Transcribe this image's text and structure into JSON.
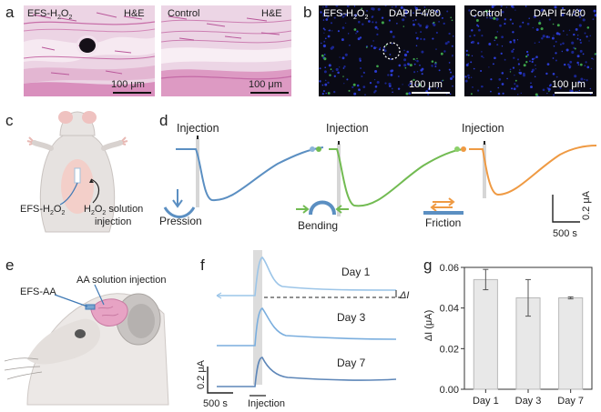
{
  "panels": {
    "a": {
      "label": "a",
      "left_title": "EFS-H",
      "left_sub": "2",
      "left_title_tail": "O",
      "left_sub2": "2",
      "left_stain": "H&E",
      "right_title": "Control",
      "right_stain": "H&E",
      "scale_left": "100 μm",
      "scale_right": "100 μm"
    },
    "b": {
      "label": "b",
      "left_title": "EFS-H",
      "left_sub": "2",
      "left_title_tail": "O",
      "left_sub2": "2",
      "left_stain": "DAPI F4/80",
      "right_title": "Control",
      "right_stain": "DAPI F4/80",
      "scale_left": "100 μm",
      "scale_right": "100 μm"
    },
    "c": {
      "label": "c",
      "efs_label": "EFS-H",
      "efs_sub": "2",
      "efs_tail": "O",
      "efs_sub2": "2",
      "solution_line1_pre": "H",
      "solution_sub": "2",
      "solution_mid": "O",
      "solution_sub2": "2",
      "solution_line1_post": " solution",
      "solution_line2": "injection"
    },
    "d": {
      "label": "d",
      "injection_labels": [
        "Injection",
        "Injection",
        "Injection"
      ],
      "modes": [
        "Pression",
        "Bending",
        "Friction"
      ],
      "scale_y": "0.2 μA",
      "scale_x": "500 s",
      "colors": {
        "pression": "#5b8fc2",
        "bending": "#72bb52",
        "friction": "#ef9a43"
      }
    },
    "e": {
      "label": "e",
      "efs_label": "EFS-AA",
      "solution_label": "AA solution injection"
    },
    "f": {
      "label": "f",
      "days": [
        "Day 1",
        "Day 3",
        "Day 7"
      ],
      "delta_label": "ΔI",
      "scale_y": "0.2 μA",
      "scale_x": "500 s",
      "injection": "Injection"
    },
    "g": {
      "label": "g"
    }
  },
  "chart_data": {
    "type": "bar",
    "categories": [
      "Day 1",
      "Day 3",
      "Day 7"
    ],
    "values": [
      0.054,
      0.045,
      0.045
    ],
    "errors": [
      0.005,
      0.009,
      0.0005
    ],
    "ylabel": "ΔI (μA)",
    "ylim": [
      0,
      0.06
    ],
    "yticks": [
      "0.00",
      "0.02",
      "0.04",
      "0.06"
    ],
    "bar_color": "#e8e8e8"
  }
}
